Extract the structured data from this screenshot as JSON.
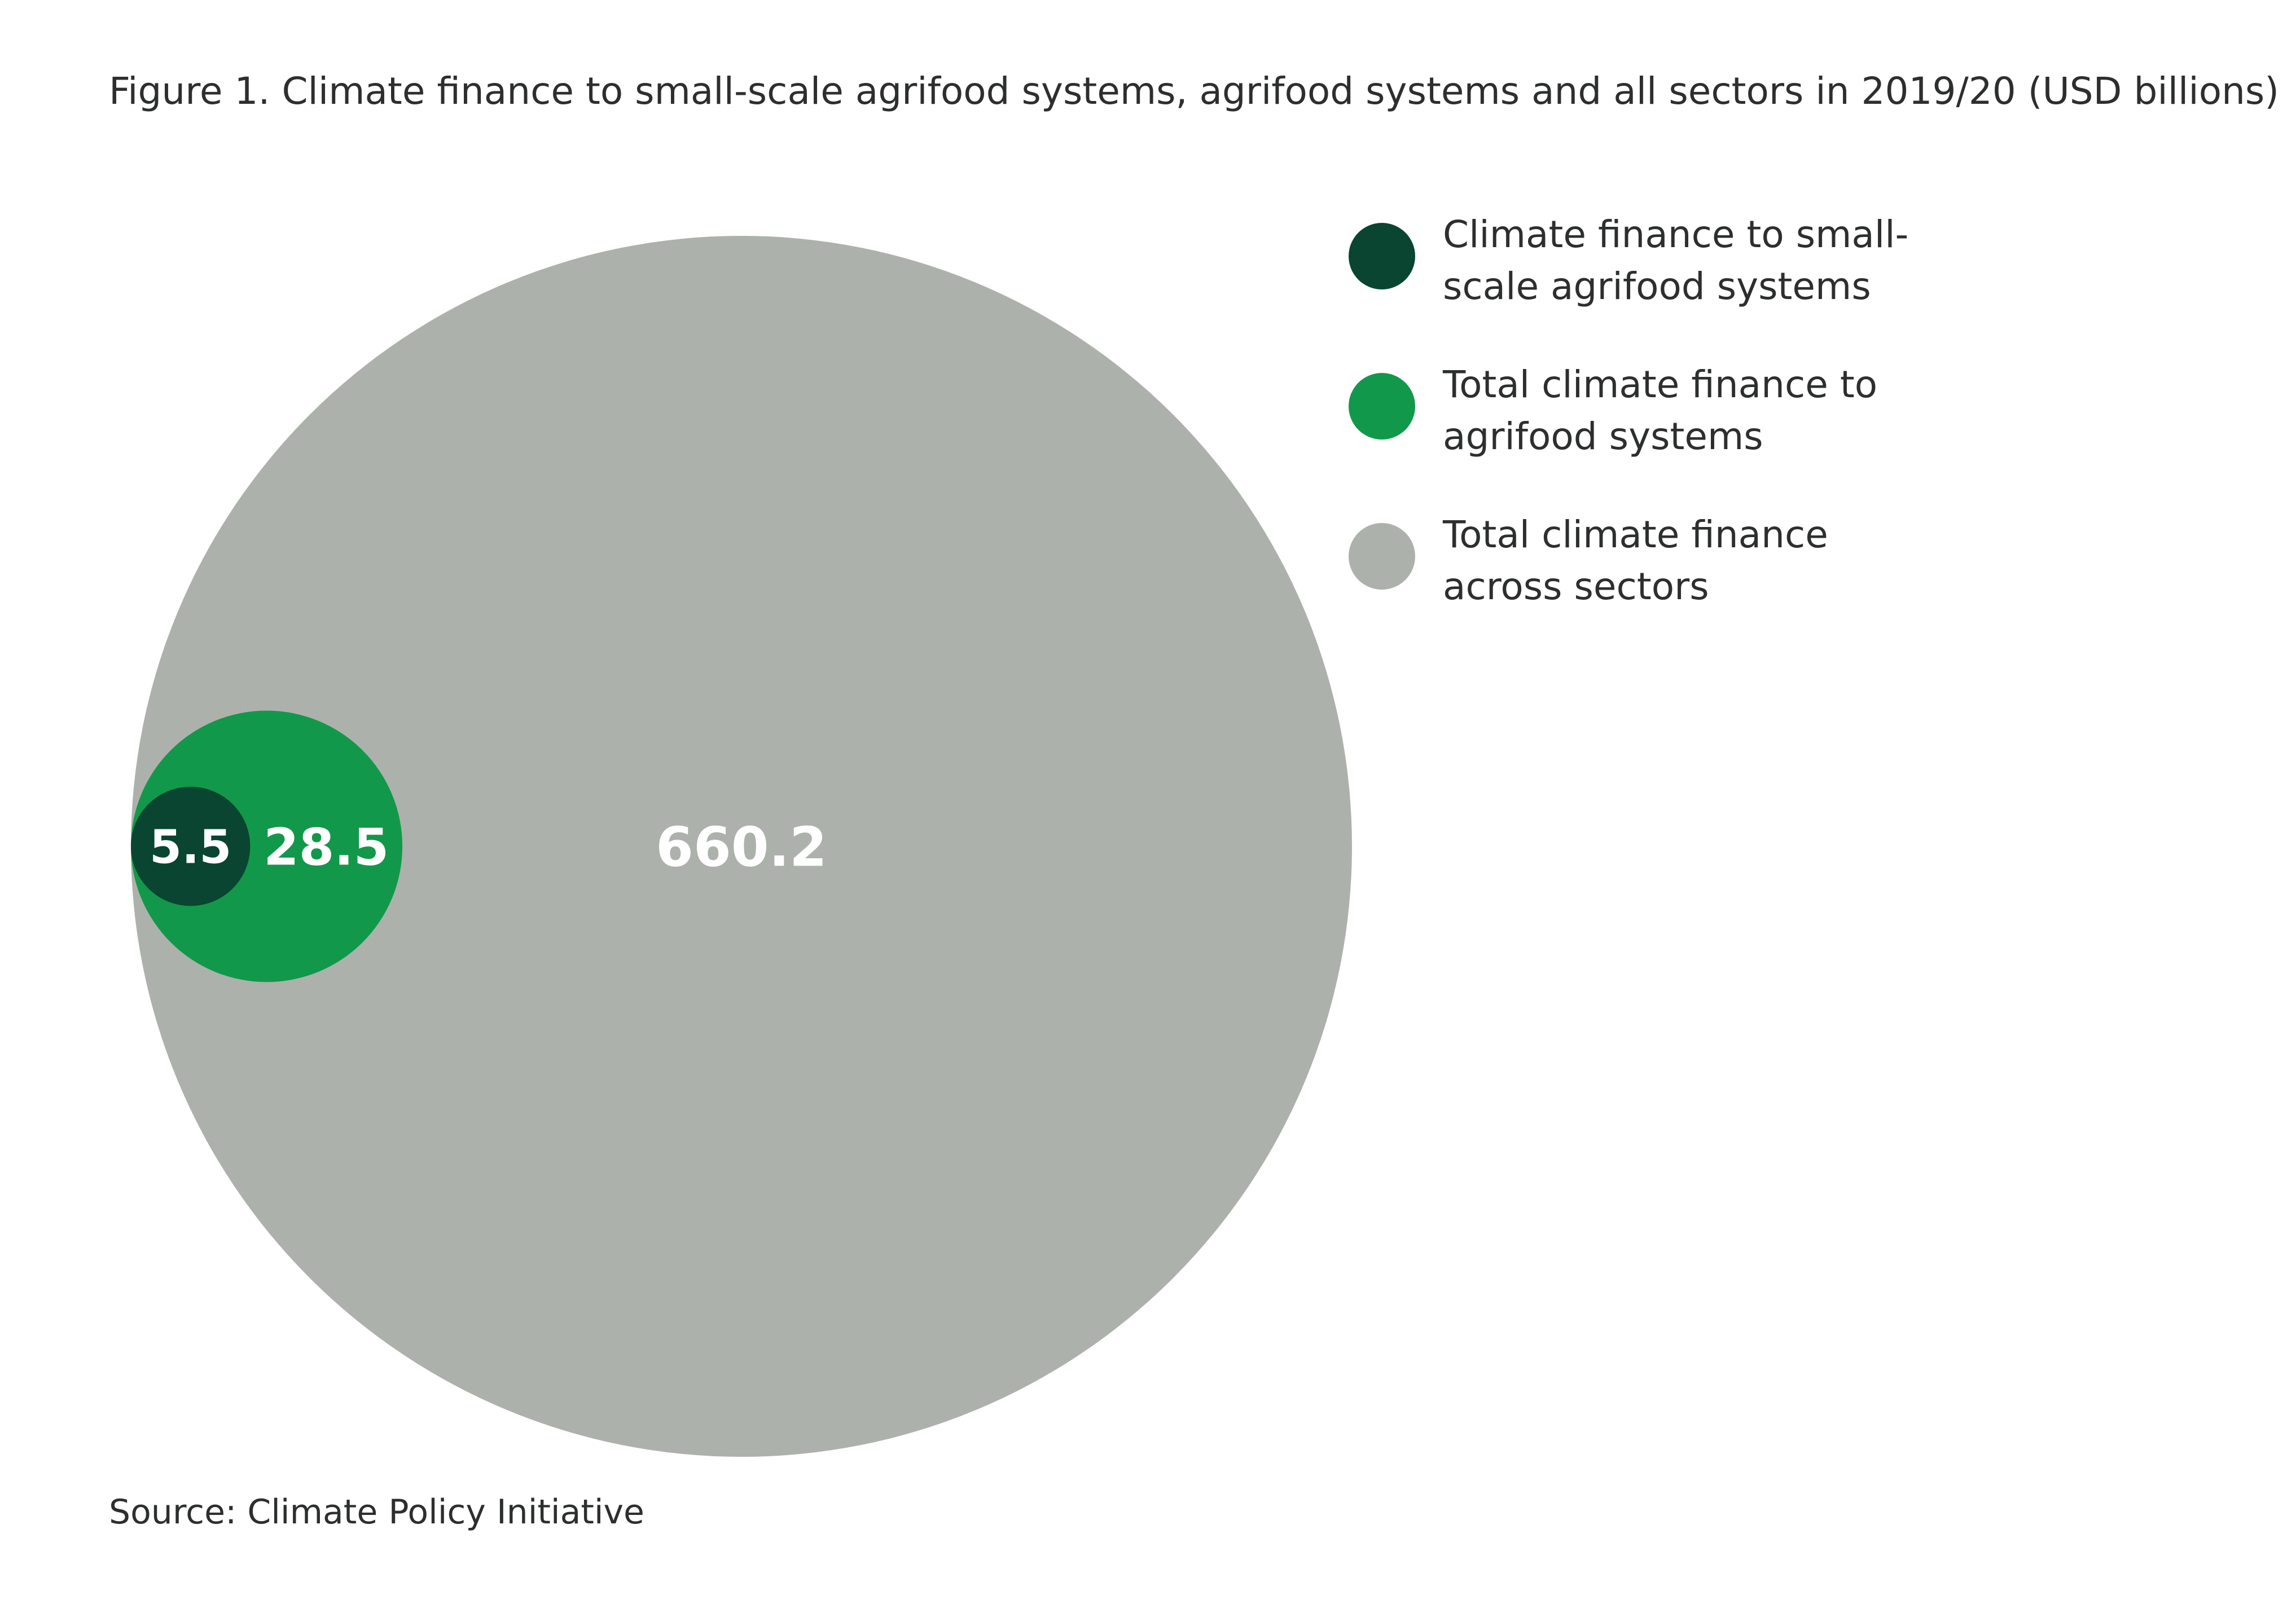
{
  "title": "Figure 1. Climate finance to small-scale agrifood systems, agrifood systems and all sectors in 2019/20 (USD billions)",
  "source": "Source: Climate Policy Initiative",
  "chart_data": {
    "type": "nested-bubble",
    "title": "Figure 1. Climate finance to small-scale agrifood systems, agrifood systems and all sectors in 2019/20 (USD billions)",
    "unit": "USD billions",
    "series": [
      {
        "name": "Total climate finance across sectors",
        "value": 660.2,
        "label": "660.2",
        "color": "#adb1ab"
      },
      {
        "name": "Total climate finance to agrifood systems",
        "value": 28.5,
        "label": "28.5",
        "color": "#12984a"
      },
      {
        "name": "Climate finance to small-scale agrifood systems",
        "value": 5.5,
        "label": "5.5",
        "color": "#094530"
      }
    ],
    "legend_position": "top-right"
  },
  "legend": [
    {
      "label": "Climate finance to small-scale agrifood systems",
      "color": "#094530"
    },
    {
      "label": "Total climate finance to agrifood systems",
      "color": "#12984a"
    },
    {
      "label": "Total climate finance across sectors",
      "color": "#adb1ab"
    }
  ]
}
